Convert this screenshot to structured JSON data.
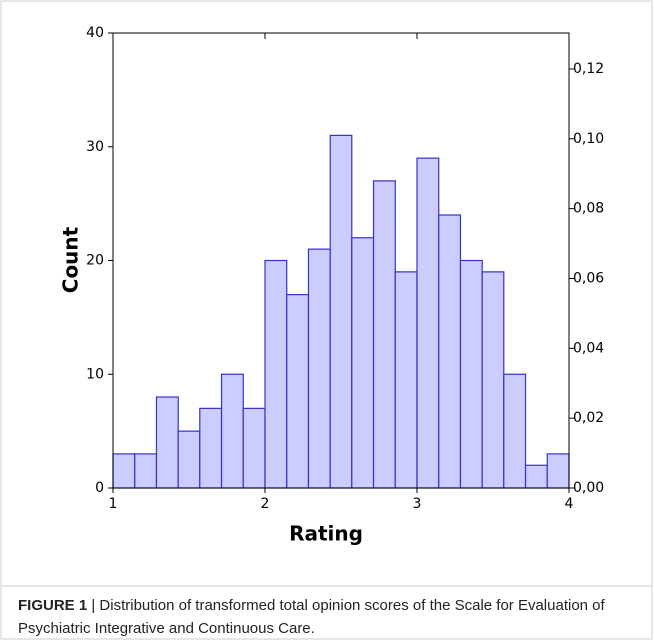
{
  "chart_data": {
    "type": "histogram",
    "x_label": "Rating",
    "y_label": "Count",
    "bins": [
      1,
      1.143,
      1.286,
      1.429,
      1.571,
      1.714,
      1.857,
      2,
      2.143,
      2.286,
      2.429,
      2.571,
      2.714,
      2.857,
      3,
      3.143,
      3.286,
      3.429,
      3.571,
      3.714,
      3.857,
      4
    ],
    "counts": [
      3,
      3,
      8,
      5,
      7,
      10,
      7,
      20,
      17,
      21,
      31,
      22,
      27,
      19,
      29,
      24,
      20,
      19,
      10,
      2,
      3
    ],
    "color": "#ccccff",
    "edge_color": "#3333cc",
    "xlim": [
      1,
      4
    ],
    "xticks": [
      1,
      2,
      3,
      4
    ],
    "ylim": [
      0,
      40
    ],
    "yticks": [
      0,
      10,
      20,
      30,
      40
    ],
    "y2lim": [
      0,
      0.1303
    ],
    "y2ticks": [
      {
        "value": 0,
        "label": "0,00"
      },
      {
        "value": 0.02,
        "label": "0,02"
      },
      {
        "value": 0.04,
        "label": "0,04"
      },
      {
        "value": 0.06,
        "label": "0,06"
      },
      {
        "value": 0.08,
        "label": "0,08"
      },
      {
        "value": 0.1,
        "label": "0,10"
      },
      {
        "value": 0.12,
        "label": "0,12"
      }
    ]
  },
  "caption": {
    "label": "FIGURE 1",
    "text": " | Distribution of transformed total opinion scores of the Scale for Evaluation of Psychiatric Integrative and Continuous Care."
  }
}
